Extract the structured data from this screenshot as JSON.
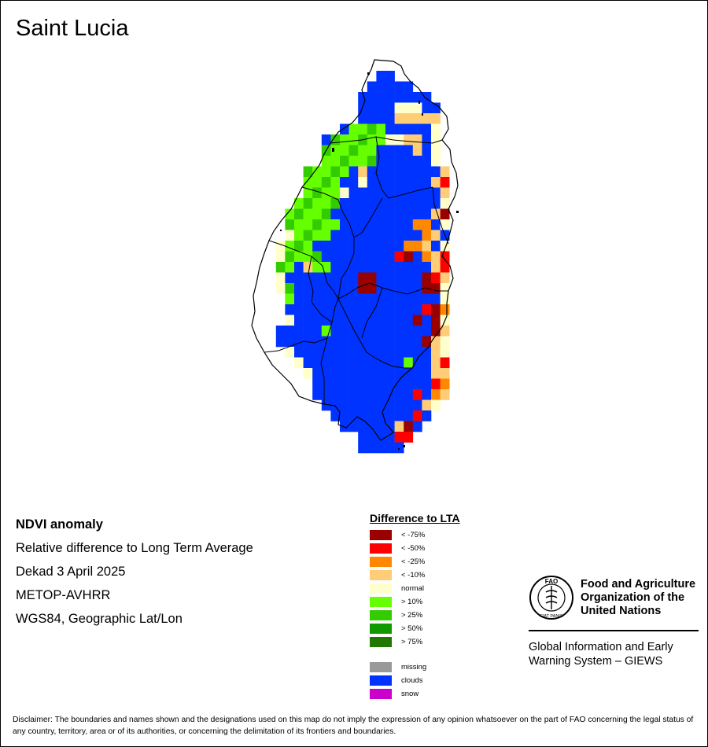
{
  "title": "Saint Lucia",
  "meta": {
    "product": "NDVI anomaly",
    "description": "Relative difference to Long Term Average",
    "period": "Dekad 3 April 2025",
    "sensor": "METOP-AVHRR",
    "projection": "WGS84, Geographic Lat/Lon"
  },
  "legend": {
    "title": "Difference to LTA",
    "classes": [
      {
        "key": "lt75",
        "label": "< -75%",
        "color": "#990000"
      },
      {
        "key": "lt50",
        "label": "< -50%",
        "color": "#ff0000"
      },
      {
        "key": "lt25",
        "label": "< -25%",
        "color": "#ff8800"
      },
      {
        "key": "lt10",
        "label": "< -10%",
        "color": "#ffcc77"
      },
      {
        "key": "normal",
        "label": "normal",
        "color": "#ffffcc"
      },
      {
        "key": "gt10",
        "label": "> 10%",
        "color": "#66ff00"
      },
      {
        "key": "gt25",
        "label": "> 25%",
        "color": "#33cc00"
      },
      {
        "key": "gt50",
        "label": "> 50%",
        "color": "#119900"
      },
      {
        "key": "gt75",
        "label": "> 75%",
        "color": "#227700"
      }
    ],
    "extra": [
      {
        "key": "missing",
        "label": "missing",
        "color": "#999999"
      },
      {
        "key": "clouds",
        "label": "clouds",
        "color": "#0033ff"
      },
      {
        "key": "snow",
        "label": "snow",
        "color": "#cc00cc"
      }
    ]
  },
  "fao": {
    "name_lines": [
      "Food and Agriculture",
      "Organization of the",
      "United Nations"
    ],
    "logo_text": "FAO",
    "logo_motto": "FIAT PANIS",
    "giews_lines": [
      "Global Information and Early",
      "Warning System – GIEWS"
    ]
  },
  "disclaimer": "Disclaimer: The boundaries and names shown and the designations used on this map do not imply the expression of any opinion whatsoever on the part of FAO concerning the legal status of any country, territory, area or of its authorities, or concerning the delimitation of its frontiers and boundaries.",
  "grid_rows": [
    "..............BB.......",
    ".............BBBBB.....",
    "............BBBBBBBB...",
    "............BBBBNNNBB..",
    "............BBBBLLLLL..",
    "..........BGGGGBBBBBN..",
    "........BGGGGGGNNLLBN..",
    "........GGGGGGBBBBLBN..",
    "........GGGGGGBBBBBBN..",
    "......GGGGGBLBBBBBBBBL.",
    "......GGGGBBNBBBBBBBLR.",
    "......GGGGNBBBBBBBBBBL.",
    ".....GGGGGBBBBBBBBBBBN.",
    "....GGGGGBBBBBBBBBBBLD.",
    "....GGGGGGBBBBBBBBOOBN.",
    "....NGGGGBBBBBBBBBBOLB.",
    "...NGGGBBBBBBBBBBOOLBN.",
    "...NGGGGBBBBBBBBRDBOLR.",
    "...GGBLGGBBBBBBBBBBBLR.",
    "...NBBBBBBBBDDBBBBBDRL.",
    "...NGBBBBBBBDDBBBBBDDN.",
    "....GBBBBBBBBBBBBBBBBN.",
    "....BBBBBBBBBBBBBBBRDO.",
    "....NBBBBBBBBBBBBBDBDN.",
    "...BBBBBGBBBBBBBBBBBDL.",
    "...BBBBBBBBBBBBBBBBDLN.",
    "....NBBBBBBBBBBBBBBBLN.",
    ".....NBBBBBBBBBBBGBBLR.",
    "......NBBBBBBBBBBBBBLL.",
    ".......BBBBBBBBBBBBBRO.",
    ".......BBBBBBBBBBBRBOL.",
    "........BBBBBBBBBBBLN..",
    ".........BBBBBBBBBRB...",
    "..........BBBBBBLDB....",
    "............BBBBRR.....",
    "............BBBBB......"
  ]
}
